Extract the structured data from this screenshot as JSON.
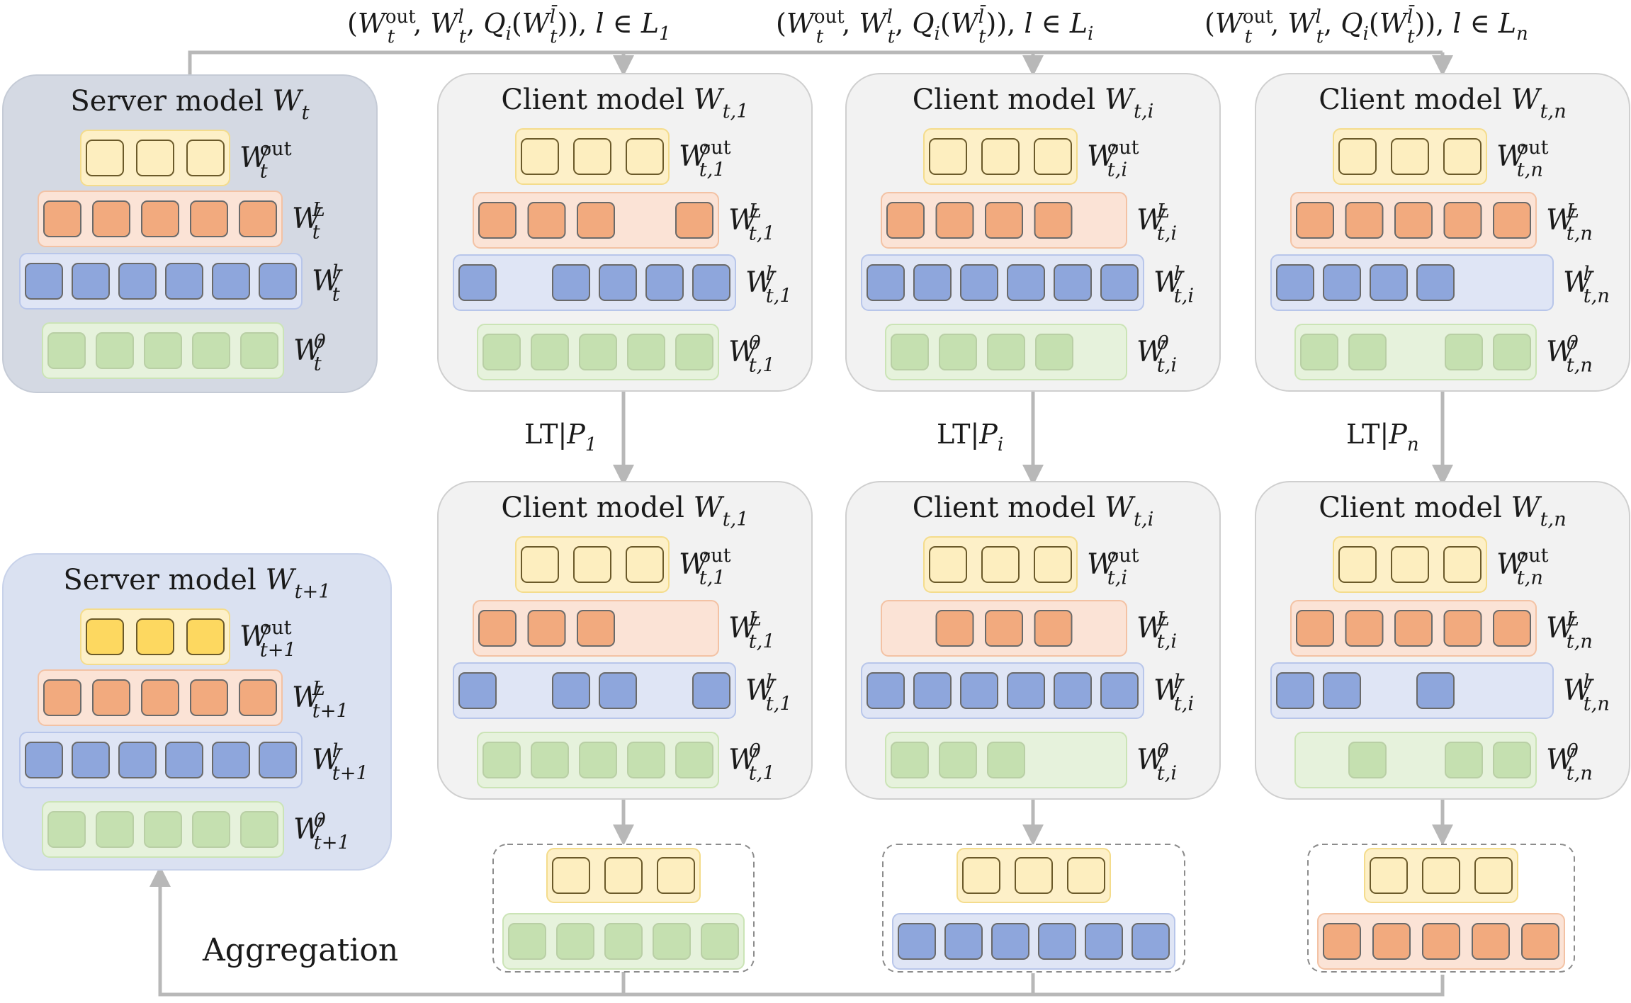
{
  "top_labels": [
    {
      "w_out": "W",
      "w_out_sub": "t",
      "w_out_sup": "out",
      "w_l": "W",
      "w_l_sub": "t",
      "w_l_sup": "l",
      "q": "Q",
      "q_sub": "i",
      "q_arg": "W",
      "q_arg_sub": "t",
      "q_arg_sup": "l̄",
      "l": "l",
      "set": "L",
      "set_sub": "1"
    },
    {
      "w_out": "W",
      "w_out_sub": "t",
      "w_out_sup": "out",
      "w_l": "W",
      "w_l_sub": "t",
      "w_l_sup": "l",
      "q": "Q",
      "q_sub": "i",
      "q_arg": "W",
      "q_arg_sub": "t",
      "q_arg_sup": "l̄",
      "l": "l",
      "set": "L",
      "set_sub": "i"
    },
    {
      "w_out": "W",
      "w_out_sub": "t",
      "w_out_sup": "out",
      "w_l": "W",
      "w_l_sub": "t",
      "w_l_sup": "l",
      "q": "Q",
      "q_sub": "i",
      "q_arg": "W",
      "q_arg_sub": "t",
      "q_arg_sup": "l̄",
      "l": "l",
      "set": "L",
      "set_sub": "n"
    }
  ],
  "server_top": {
    "title": "Server model",
    "title_var": "W",
    "title_sub": "t",
    "layers": [
      {
        "type": "out",
        "slots": [
          1,
          1,
          1
        ],
        "label": "W",
        "sup": "out",
        "sub": "t"
      },
      {
        "type": "L",
        "slots": [
          1,
          1,
          1,
          1,
          1
        ],
        "label": "W",
        "sup": "L",
        "sub": "t"
      },
      {
        "type": "l",
        "slots": [
          1,
          1,
          1,
          1,
          1,
          1
        ],
        "label": "W",
        "sup": "l",
        "sub": "t"
      },
      {
        "type": "0",
        "slots": [
          1,
          1,
          1,
          1,
          1
        ],
        "label": "W",
        "sup": "0",
        "sub": "t"
      }
    ]
  },
  "server_bottom": {
    "title": "Server model",
    "title_var": "W",
    "title_sub": "t+1",
    "layers": [
      {
        "type": "out_upd",
        "slots": [
          1,
          1,
          1
        ],
        "label": "W",
        "sup": "out",
        "sub": "t+1"
      },
      {
        "type": "L",
        "slots": [
          1,
          1,
          1,
          1,
          1
        ],
        "label": "W",
        "sup": "L",
        "sub": "t+1"
      },
      {
        "type": "l",
        "slots": [
          1,
          1,
          1,
          1,
          1,
          1
        ],
        "label": "W",
        "sup": "l",
        "sub": "t+1"
      },
      {
        "type": "0",
        "slots": [
          1,
          1,
          1,
          1,
          1
        ],
        "label": "W",
        "sup": "0",
        "sub": "t+1"
      }
    ]
  },
  "clients_top": [
    {
      "title": "Client model",
      "title_var": "W",
      "title_sub": "t,1",
      "layers": [
        {
          "type": "out",
          "slots": [
            1,
            1,
            1
          ],
          "label": "W",
          "sup": "out",
          "sub": "t,1"
        },
        {
          "type": "L",
          "slots": [
            1,
            1,
            1,
            0,
            1
          ],
          "label": "W",
          "sup": "L",
          "sub": "t,1"
        },
        {
          "type": "l",
          "slots": [
            1,
            0,
            1,
            1,
            1,
            1
          ],
          "label": "W",
          "sup": "l",
          "sub": "t,1"
        },
        {
          "type": "0",
          "slots": [
            1,
            1,
            1,
            1,
            1
          ],
          "label": "W",
          "sup": "0",
          "sub": "t,1"
        }
      ]
    },
    {
      "title": "Client model",
      "title_var": "W",
      "title_sub": "t,i",
      "layers": [
        {
          "type": "out",
          "slots": [
            1,
            1,
            1
          ],
          "label": "W",
          "sup": "out",
          "sub": "t,i"
        },
        {
          "type": "L",
          "slots": [
            1,
            1,
            1,
            1,
            0
          ],
          "label": "W",
          "sup": "L",
          "sub": "t,i"
        },
        {
          "type": "l",
          "slots": [
            1,
            1,
            1,
            1,
            1,
            1
          ],
          "label": "W",
          "sup": "l",
          "sub": "t,i"
        },
        {
          "type": "0",
          "slots": [
            1,
            1,
            1,
            1,
            0
          ],
          "label": "W",
          "sup": "0",
          "sub": "t,i"
        }
      ]
    },
    {
      "title": "Client model",
      "title_var": "W",
      "title_sub": "t,n",
      "layers": [
        {
          "type": "out",
          "slots": [
            1,
            1,
            1
          ],
          "label": "W",
          "sup": "out",
          "sub": "t,n"
        },
        {
          "type": "L",
          "slots": [
            1,
            1,
            1,
            1,
            1
          ],
          "label": "W",
          "sup": "L",
          "sub": "t,n"
        },
        {
          "type": "l",
          "slots": [
            1,
            1,
            1,
            1,
            0,
            0
          ],
          "label": "W",
          "sup": "l",
          "sub": "t,n"
        },
        {
          "type": "0",
          "slots": [
            1,
            1,
            0,
            1,
            1
          ],
          "label": "W",
          "sup": "0",
          "sub": "t,n"
        }
      ]
    }
  ],
  "clients_bottom": [
    {
      "title": "Client model",
      "title_var": "W",
      "title_sub": "t,1",
      "layers": [
        {
          "type": "out",
          "slots": [
            1,
            1,
            1
          ],
          "label": "W",
          "sup": "out",
          "sub": "t,1"
        },
        {
          "type": "L",
          "slots": [
            1,
            1,
            1,
            0,
            0
          ],
          "label": "W",
          "sup": "L",
          "sub": "t,1"
        },
        {
          "type": "l",
          "slots": [
            1,
            0,
            1,
            1,
            0,
            1
          ],
          "label": "W",
          "sup": "l",
          "sub": "t,1"
        },
        {
          "type": "0",
          "slots": [
            1,
            1,
            1,
            1,
            1
          ],
          "label": "W",
          "sup": "0",
          "sub": "t,1"
        }
      ]
    },
    {
      "title": "Client model",
      "title_var": "W",
      "title_sub": "t,i",
      "layers": [
        {
          "type": "out",
          "slots": [
            1,
            1,
            1
          ],
          "label": "W",
          "sup": "out",
          "sub": "t,i"
        },
        {
          "type": "L",
          "slots": [
            0,
            1,
            1,
            1,
            0
          ],
          "label": "W",
          "sup": "L",
          "sub": "t,i"
        },
        {
          "type": "l",
          "slots": [
            1,
            1,
            1,
            1,
            1,
            1
          ],
          "label": "W",
          "sup": "l",
          "sub": "t,i"
        },
        {
          "type": "0",
          "slots": [
            1,
            1,
            1,
            0,
            0
          ],
          "label": "W",
          "sup": "0",
          "sub": "t,i"
        }
      ]
    },
    {
      "title": "Client model",
      "title_var": "W",
      "title_sub": "t,n",
      "layers": [
        {
          "type": "out",
          "slots": [
            1,
            1,
            1
          ],
          "label": "W",
          "sup": "out",
          "sub": "t,n"
        },
        {
          "type": "L",
          "slots": [
            1,
            1,
            1,
            1,
            1
          ],
          "label": "W",
          "sup": "L",
          "sub": "t,n"
        },
        {
          "type": "l",
          "slots": [
            1,
            1,
            0,
            1,
            0,
            0
          ],
          "label": "W",
          "sup": "l",
          "sub": "t,n"
        },
        {
          "type": "0",
          "slots": [
            0,
            1,
            0,
            1,
            1
          ],
          "label": "W",
          "sup": "0",
          "sub": "t,n"
        }
      ]
    }
  ],
  "lt_labels": [
    {
      "text": "LT|",
      "var": "P",
      "sub": "1"
    },
    {
      "text": "LT|",
      "var": "P",
      "sub": "i"
    },
    {
      "text": "LT|",
      "var": "P",
      "sub": "n"
    }
  ],
  "uploads": [
    {
      "top": "out",
      "top_slots": 3,
      "bottom": "0",
      "bottom_slots": 5
    },
    {
      "top": "out",
      "top_slots": 3,
      "bottom": "l",
      "bottom_slots": 6
    },
    {
      "top": "out",
      "top_slots": 3,
      "bottom": "L",
      "bottom_slots": 5
    }
  ],
  "aggregation_label": "Aggregation",
  "colors": {
    "out_fill": "#fdf0c8",
    "out_border": "#f4dc8c",
    "out_cell": "#fdeebf",
    "out_cell_stroke": "#6b5a2a",
    "out_upd_cell": "#fdd860",
    "L_fill": "#fbe3d6",
    "L_border": "#f3c2a4",
    "L_cell": "#f2aa7e",
    "l_fill": "#dfe5f5",
    "l_border": "#b8c6ea",
    "l_cell": "#8ea6dc",
    "zero_fill": "#e6f2dc",
    "zero_border": "#cbe4b6",
    "zero_cell": "#c5e0b0",
    "cell_stroke": "#6a6a6a",
    "server_top_bg": "#d4d9e3",
    "server_bottom_bg": "#dae1f1",
    "client_bg": "#f2f2f2",
    "client_border": "#cfcfcf",
    "arrow": "#b8b8b8"
  }
}
